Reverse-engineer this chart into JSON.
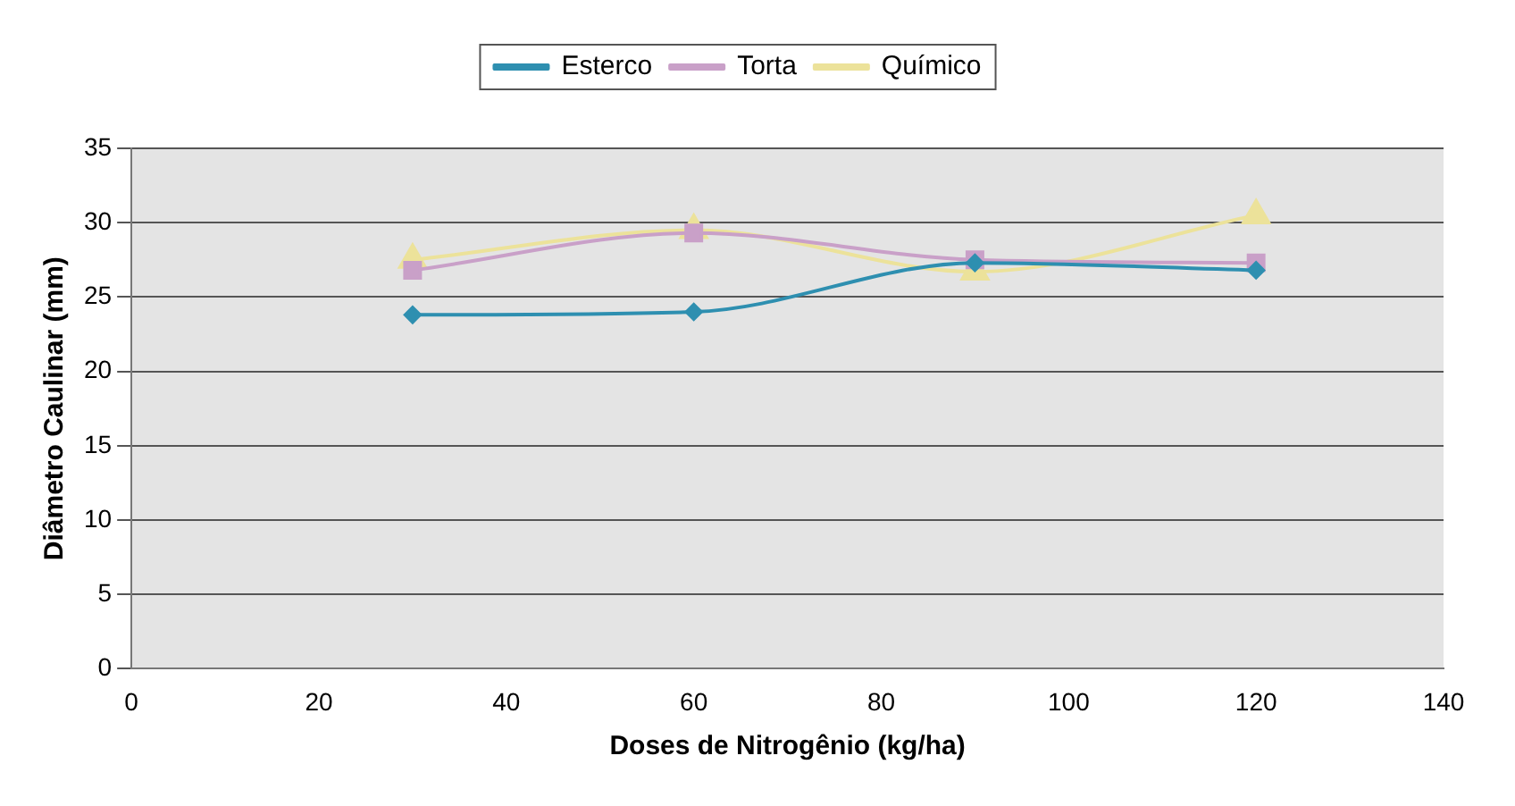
{
  "chart_data": {
    "type": "line",
    "xlabel": "Doses de Nitrogênio (kg/ha)",
    "ylabel": "Diâmetro Caulinar (mm)",
    "x": [
      30,
      60,
      90,
      120
    ],
    "series": [
      {
        "name": "Esterco",
        "color": "#2e8fb0",
        "marker": "diamond",
        "values": [
          23.8,
          24,
          27.3,
          26.8
        ]
      },
      {
        "name": "Torta",
        "color": "#c9a0c8",
        "marker": "square",
        "values": [
          26.8,
          29.3,
          27.5,
          27.3
        ]
      },
      {
        "name": "Químico",
        "color": "#ece29a",
        "marker": "triangle",
        "values": [
          27.5,
          29.5,
          26.7,
          30.5
        ]
      }
    ],
    "xlim": [
      0,
      140
    ],
    "xticks": [
      0,
      20,
      40,
      60,
      80,
      100,
      120,
      140
    ],
    "ylim": [
      0,
      35
    ],
    "yticks": [
      0,
      5,
      10,
      15,
      20,
      25,
      30,
      35
    ],
    "grid": "y",
    "legend": "top"
  }
}
